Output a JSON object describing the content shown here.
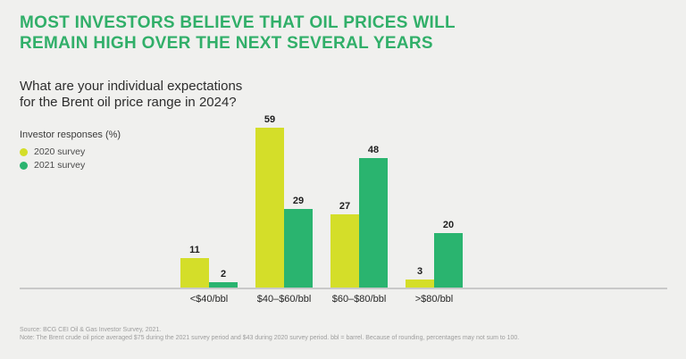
{
  "title_lines": [
    "MOST INVESTORS BELIEVE THAT OIL PRICES WILL",
    "REMAIN HIGH OVER THE NEXT SEVERAL YEARS"
  ],
  "question_lines": [
    "What are your individual expectations",
    "for the Brent oil price range in 2024?"
  ],
  "legend": {
    "title": "Investor responses (%)",
    "items": [
      {
        "label": "2020 survey",
        "color": "#d4de29"
      },
      {
        "label": "2021 survey",
        "color": "#2ab46f"
      }
    ]
  },
  "chart_data": {
    "type": "bar",
    "categories": [
      "<$40/bbl",
      "$40–$60/bbl",
      "$60–$80/bbl",
      ">$80/bbl"
    ],
    "series": [
      {
        "name": "2020 survey",
        "color": "#d4de29",
        "values": [
          11,
          59,
          27,
          3
        ]
      },
      {
        "name": "2021 survey",
        "color": "#2ab46f",
        "values": [
          2,
          29,
          48,
          20
        ]
      }
    ],
    "title": "What are your individual expectations for the Brent oil price range in 2024?",
    "xlabel": "",
    "ylabel": "Investor responses (%)",
    "ylim": [
      0,
      60
    ],
    "grid": false,
    "legend_position": "upper-left",
    "value_labels": true
  },
  "footer": {
    "source": "Source: BCG CEI Oil & Gas Investor Survey, 2021.",
    "note": "Note: The Brent crude oil price averaged $75 during the 2021 survey period and $43 during 2020 survey period. bbl = barrel. Because of rounding, percentages may not sum to 100."
  },
  "colors": {
    "background": "#f0f0ee",
    "title_green": "#31af69",
    "series_2020": "#d4de29",
    "series_2021": "#2ab46f",
    "axis_line": "#c9c9c9",
    "footer_text": "#9d9d9d"
  }
}
